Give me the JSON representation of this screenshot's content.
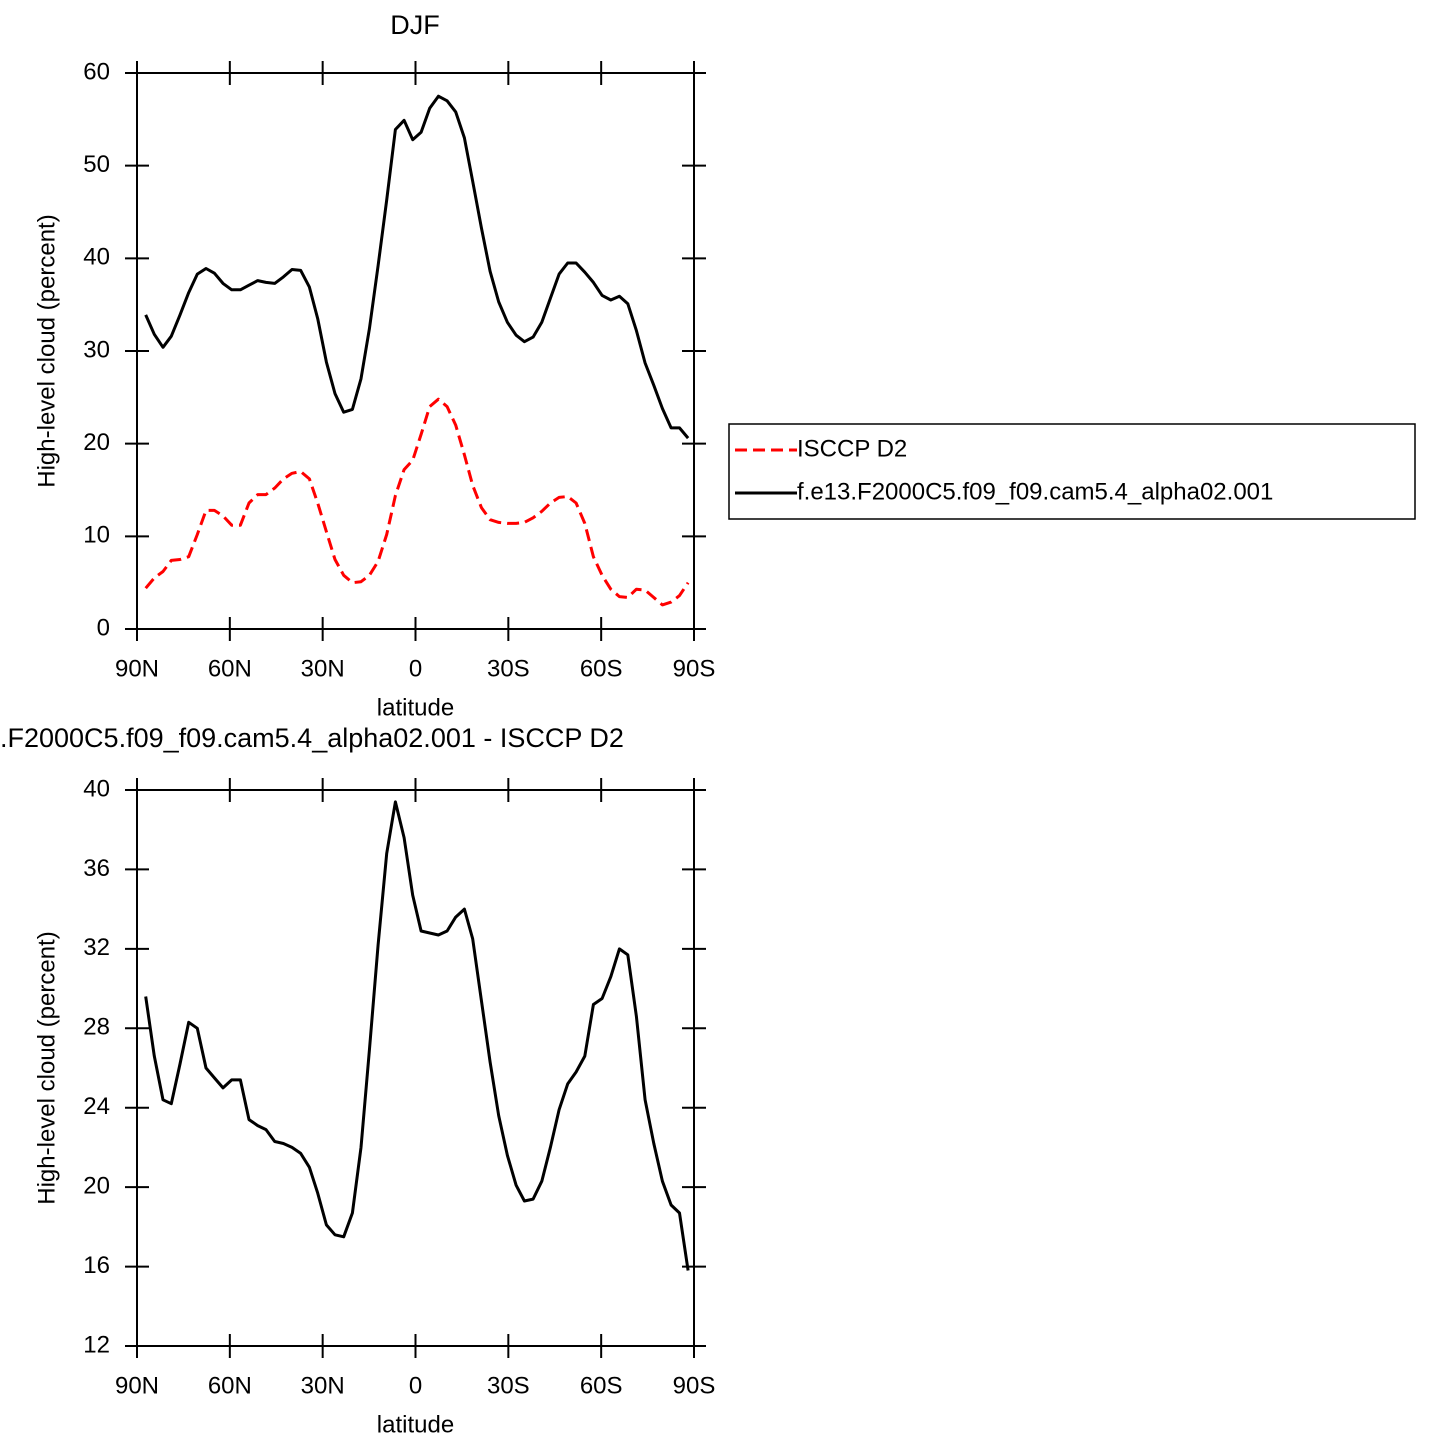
{
  "chart_data": [
    {
      "type": "line",
      "title": "DJF",
      "xlabel": "latitude",
      "ylabel": "High-level cloud (percent)",
      "x": [
        87.2,
        84.4,
        81.6,
        78.9,
        76.1,
        73.3,
        70.5,
        67.7,
        65.0,
        62.2,
        59.4,
        56.6,
        53.8,
        51.0,
        48.3,
        45.5,
        42.7,
        39.9,
        37.1,
        34.3,
        31.6,
        28.8,
        26.0,
        23.2,
        20.4,
        17.6,
        14.9,
        12.1,
        9.3,
        6.5,
        3.7,
        0.9,
        -1.8,
        -4.6,
        -7.4,
        -10.2,
        -13.0,
        -15.8,
        -18.5,
        -21.3,
        -24.1,
        -26.9,
        -29.7,
        -32.5,
        -35.2,
        -38.0,
        -40.8,
        -43.6,
        -46.4,
        -49.2,
        -51.9,
        -54.7,
        -57.5,
        -60.3,
        -63.1,
        -65.9,
        -68.6,
        -71.4,
        -74.2,
        -77.0,
        -79.8,
        -82.6,
        -85.3,
        -88.1
      ],
      "series": [
        {
          "name": "ISCCP D2",
          "color": "#ff0000",
          "style": "dashed",
          "values": [
            4.4,
            5.5,
            6.2,
            7.4,
            7.5,
            7.8,
            10.2,
            12.8,
            12.8,
            12.2,
            11.2,
            11.2,
            13.6,
            14.5,
            14.5,
            15.2,
            16.2,
            16.8,
            17.0,
            16.2,
            13.6,
            10.5,
            7.5,
            5.8,
            5.0,
            5.1,
            5.8,
            7.3,
            10.2,
            14.4,
            17.2,
            18.2,
            21.0,
            24.0,
            24.8,
            24.0,
            22.0,
            18.8,
            15.5,
            13.1,
            11.8,
            11.5,
            11.4,
            11.4,
            11.5,
            12.0,
            12.7,
            13.6,
            14.2,
            14.3,
            13.6,
            11.4,
            7.8,
            5.8,
            4.3,
            3.5,
            3.4,
            4.3,
            4.2,
            3.4,
            2.6,
            2.9,
            3.6,
            5.0
          ]
        },
        {
          "name": "f.e13.F2000C5.f09_f09.cam5.4_alpha02.001",
          "color": "#000000",
          "style": "solid",
          "values": [
            33.9,
            31.8,
            30.4,
            31.6,
            33.9,
            36.3,
            38.3,
            38.9,
            38.4,
            37.3,
            36.6,
            36.6,
            37.1,
            37.6,
            37.4,
            37.3,
            38.0,
            38.8,
            38.7,
            36.9,
            33.5,
            28.8,
            25.4,
            23.4,
            23.7,
            27.0,
            32.4,
            39.2,
            46.3,
            53.9,
            54.9,
            52.8,
            53.6,
            56.2,
            57.5,
            57.0,
            55.8,
            53.0,
            48.3,
            43.3,
            38.6,
            35.3,
            33.1,
            31.7,
            31.0,
            31.5,
            33.1,
            35.7,
            38.3,
            39.5,
            39.5,
            38.5,
            37.4,
            36.0,
            35.5,
            35.9,
            35.1,
            32.2,
            28.7,
            26.3,
            23.8,
            21.7,
            21.7,
            20.6
          ]
        }
      ],
      "xlim": [
        90,
        -90
      ],
      "xticks": [
        {
          "value": 90,
          "label": "90N"
        },
        {
          "value": 60,
          "label": "60N"
        },
        {
          "value": 30,
          "label": "30N"
        },
        0,
        {
          "value": -30,
          "label": "30S"
        },
        {
          "value": -60,
          "label": "60S"
        },
        {
          "value": -90,
          "label": "90S"
        }
      ],
      "ylim": [
        0,
        60
      ],
      "yticks": [
        0,
        10,
        20,
        30,
        40,
        50,
        60
      ],
      "legend": "right"
    },
    {
      "type": "line",
      "title": ".F2000C5.f09_f09.cam5.4_alpha02.001 - ISCCP D2",
      "xlabel": "latitude",
      "ylabel": "High-level cloud (percent)",
      "x": [
        87.2,
        84.4,
        81.6,
        78.9,
        76.1,
        73.3,
        70.5,
        67.7,
        65.0,
        62.2,
        59.4,
        56.6,
        53.8,
        51.0,
        48.3,
        45.5,
        42.7,
        39.9,
        37.1,
        34.3,
        31.6,
        28.8,
        26.0,
        23.2,
        20.4,
        17.6,
        14.9,
        12.1,
        9.3,
        6.5,
        3.7,
        0.9,
        -1.8,
        -4.6,
        -7.4,
        -10.2,
        -13.0,
        -15.8,
        -18.5,
        -21.3,
        -24.1,
        -26.9,
        -29.7,
        -32.5,
        -35.2,
        -38.0,
        -40.8,
        -43.6,
        -46.4,
        -49.2,
        -51.9,
        -54.7,
        -57.5,
        -60.3,
        -63.1,
        -65.9,
        -68.6,
        -71.4,
        -74.2,
        -77.0,
        -79.8,
        -82.6,
        -85.3,
        -88.1
      ],
      "series": [
        {
          "color": "#000000",
          "style": "solid",
          "values": [
            29.6,
            26.6,
            24.4,
            24.2,
            26.2,
            28.3,
            28.0,
            26.0,
            25.5,
            25.0,
            25.4,
            25.4,
            23.4,
            23.1,
            22.9,
            22.3,
            22.2,
            22.0,
            21.7,
            21.0,
            19.7,
            18.1,
            17.6,
            17.5,
            18.7,
            22.0,
            26.9,
            32.2,
            36.8,
            39.4,
            37.6,
            34.7,
            32.9,
            32.8,
            32.7,
            32.9,
            33.6,
            34.0,
            32.5,
            29.4,
            26.3,
            23.6,
            21.6,
            20.1,
            19.3,
            19.4,
            20.3,
            22.0,
            23.9,
            25.2,
            25.8,
            26.6,
            29.2,
            29.5,
            30.6,
            32.0,
            31.7,
            28.6,
            24.4,
            22.2,
            20.3,
            19.1,
            18.7,
            15.8
          ]
        }
      ],
      "xlim": [
        90,
        -90
      ],
      "xticks": [
        {
          "value": 90,
          "label": "90N"
        },
        {
          "value": 60,
          "label": "60N"
        },
        {
          "value": 30,
          "label": "30N"
        },
        0,
        {
          "value": -30,
          "label": "30S"
        },
        {
          "value": -60,
          "label": "60S"
        },
        {
          "value": -90,
          "label": "90S"
        }
      ],
      "ylim": [
        12,
        40
      ],
      "yticks": [
        12,
        16,
        20,
        24,
        28,
        32,
        36,
        40
      ]
    }
  ]
}
